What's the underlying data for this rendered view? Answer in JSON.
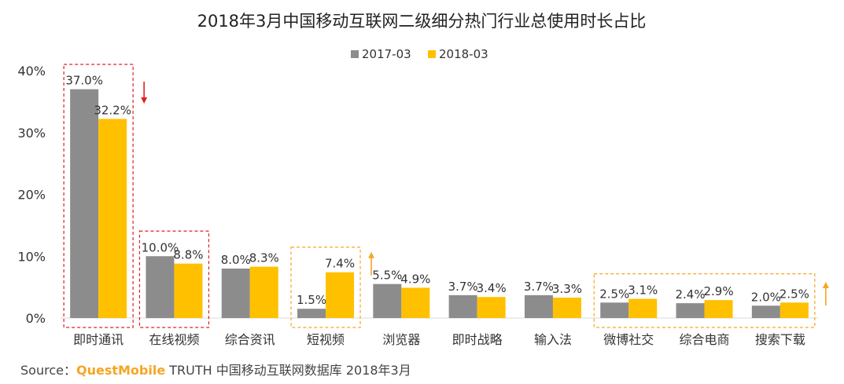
{
  "chart_data": {
    "type": "bar",
    "title": "2018年3月中国移动互联网二级细分热门行业总使用时长占比",
    "categories": [
      "即时通讯",
      "在线视频",
      "综合资讯",
      "短视频",
      "浏览器",
      "即时战略",
      "输入法",
      "微博社交",
      "综合电商",
      "搜索下载"
    ],
    "series": [
      {
        "name": "2017-03",
        "values": [
          37.0,
          10.0,
          8.0,
          1.5,
          5.5,
          3.7,
          3.7,
          2.5,
          2.4,
          2.0
        ],
        "labels": [
          "37.0%",
          "10.0%",
          "8.0%",
          "1.5%",
          "5.5%",
          "3.7%",
          "3.7%",
          "2.5%",
          "2.4%",
          "2.0%"
        ],
        "color": "#8c8c8c"
      },
      {
        "name": "2018-03",
        "values": [
          32.2,
          8.8,
          8.3,
          7.4,
          4.9,
          3.4,
          3.3,
          3.1,
          2.9,
          2.5
        ],
        "labels": [
          "32.2%",
          "8.8%",
          "8.3%",
          "7.4%",
          "4.9%",
          "3.4%",
          "3.3%",
          "3.1%",
          "2.9%",
          "2.5%"
        ],
        "color": "#ffc000"
      }
    ],
    "ylim": [
      0,
      40
    ],
    "yticks": [
      "0%",
      "10%",
      "20%",
      "30%",
      "40%"
    ],
    "legend_position": "top-center",
    "grid": false,
    "highlights": [
      {
        "categories": [
          0,
          0
        ],
        "color": "#e02020",
        "arrow": "down"
      },
      {
        "categories": [
          1,
          1
        ],
        "color": "#e02020"
      },
      {
        "categories": [
          3,
          3
        ],
        "color": "#f5a623",
        "arrow": "up"
      },
      {
        "categories": [
          7,
          9
        ],
        "color": "#f5a623",
        "arrow": "up"
      }
    ]
  },
  "source": {
    "label": "Source：",
    "brand": "QuestMobile",
    "text": " TRUTH 中国移动互联网数据库 2018年3月"
  }
}
